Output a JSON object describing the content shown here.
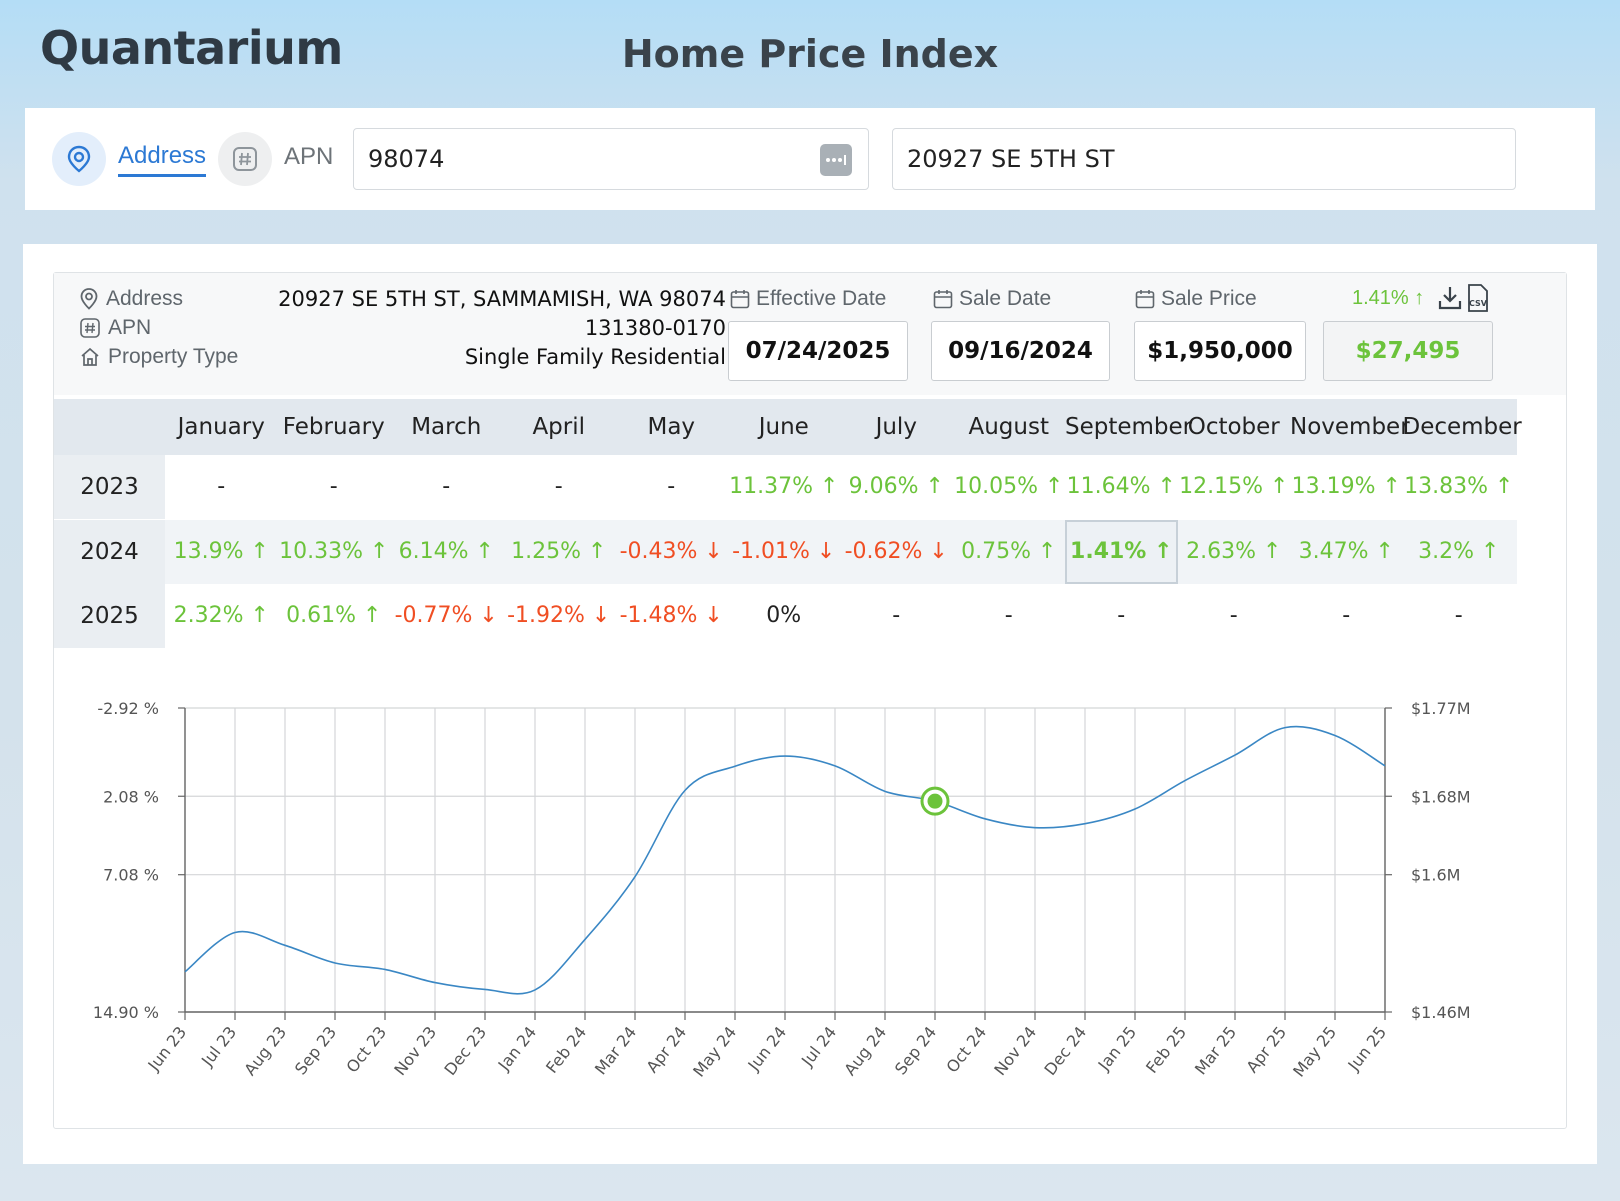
{
  "app": {
    "logo": "Quantarium",
    "title": "Home Price Index"
  },
  "search": {
    "modes": [
      {
        "label": "Address",
        "active": true
      },
      {
        "label": "APN",
        "active": false
      }
    ],
    "zip_value": "98074",
    "street_value": "20927 SE 5TH ST"
  },
  "property": {
    "address_label": "Address",
    "apn_label": "APN",
    "type_label": "Property Type",
    "address": "20927 SE 5TH ST, SAMMAMISH, WA 98074",
    "apn": "131380-0170",
    "type": "Single Family Residential"
  },
  "dates": {
    "effective_label": "Effective Date",
    "effective_value": "07/24/2025",
    "sale_label": "Sale Date",
    "sale_value": "09/16/2024",
    "price_label": "Sale Price",
    "price_value": "$1,950,000",
    "change_pct": "1.41% ↑",
    "change_value": "$27,495"
  },
  "table": {
    "months": [
      "January",
      "February",
      "March",
      "April",
      "May",
      "June",
      "July",
      "August",
      "September",
      "October",
      "November",
      "December"
    ],
    "rows": [
      {
        "year": "2023",
        "cells": [
          {
            "v": "-",
            "t": "neu"
          },
          {
            "v": "-",
            "t": "neu"
          },
          {
            "v": "-",
            "t": "neu"
          },
          {
            "v": "-",
            "t": "neu"
          },
          {
            "v": "-",
            "t": "neu"
          },
          {
            "v": "11.37% ↑",
            "t": "pos"
          },
          {
            "v": "9.06% ↑",
            "t": "pos"
          },
          {
            "v": "10.05% ↑",
            "t": "pos"
          },
          {
            "v": "11.64% ↑",
            "t": "pos"
          },
          {
            "v": "12.15% ↑",
            "t": "pos"
          },
          {
            "v": "13.19% ↑",
            "t": "pos"
          },
          {
            "v": "13.83% ↑",
            "t": "pos"
          }
        ]
      },
      {
        "year": "2024",
        "cells": [
          {
            "v": "13.9% ↑",
            "t": "pos"
          },
          {
            "v": "10.33% ↑",
            "t": "pos"
          },
          {
            "v": "6.14% ↑",
            "t": "pos"
          },
          {
            "v": "1.25% ↑",
            "t": "pos"
          },
          {
            "v": "-0.43% ↓",
            "t": "neg"
          },
          {
            "v": "-1.01% ↓",
            "t": "neg"
          },
          {
            "v": "-0.62% ↓",
            "t": "neg"
          },
          {
            "v": "0.75% ↑",
            "t": "pos"
          },
          {
            "v": "1.41% ↑",
            "t": "pos",
            "selected": true
          },
          {
            "v": "2.63% ↑",
            "t": "pos"
          },
          {
            "v": "3.47% ↑",
            "t": "pos"
          },
          {
            "v": "3.2% ↑",
            "t": "pos"
          }
        ]
      },
      {
        "year": "2025",
        "cells": [
          {
            "v": "2.32% ↑",
            "t": "pos"
          },
          {
            "v": "0.61% ↑",
            "t": "pos"
          },
          {
            "v": "-0.77% ↓",
            "t": "neg"
          },
          {
            "v": "-1.92% ↓",
            "t": "neg"
          },
          {
            "v": "-1.48% ↓",
            "t": "neg"
          },
          {
            "v": "0%",
            "t": "neu"
          },
          {
            "v": "-",
            "t": "neu"
          },
          {
            "v": "-",
            "t": "neu"
          },
          {
            "v": "-",
            "t": "neu"
          },
          {
            "v": "-",
            "t": "neu"
          },
          {
            "v": "-",
            "t": "neu"
          },
          {
            "v": "-",
            "t": "neu"
          }
        ]
      }
    ]
  },
  "chart_data": {
    "type": "line",
    "x": [
      "Jun 23",
      "Jul 23",
      "Aug 23",
      "Sep 23",
      "Oct 23",
      "Nov 23",
      "Dec 23",
      "Jan 24",
      "Feb 24",
      "Mar 24",
      "Apr 24",
      "May 24",
      "Jun 24",
      "Jul 24",
      "Aug 24",
      "Sep 24",
      "Oct 24",
      "Nov 24",
      "Dec 24",
      "Jan 25",
      "Feb 25",
      "Mar 25",
      "Apr 25",
      "May 25",
      "Jun 25"
    ],
    "values_usd": [
      1.501,
      1.5411,
      1.528,
      1.51,
      1.5034,
      1.49,
      1.483,
      1.4825,
      1.534,
      1.598,
      1.686,
      1.7106,
      1.721,
      1.711,
      1.685,
      1.675,
      1.657,
      1.648,
      1.652,
      1.667,
      1.696,
      1.722,
      1.75,
      1.742,
      1.711
    ],
    "left_ticks": [
      "-2.92 %",
      "2.08 %",
      "7.08 %",
      "14.90 %"
    ],
    "right_ticks": [
      "$1.77M",
      "$1.68M",
      "$1.6M",
      "$1.46M"
    ],
    "right_tick_values": [
      1.77,
      1.68,
      1.6,
      1.46
    ],
    "ylim_usd_millions": [
      1.46,
      1.77
    ],
    "highlight": {
      "x": "Sep 24",
      "value_usd": 1.675
    },
    "line_color": "#3a87c4",
    "highlight_color": "#6cc33b"
  }
}
